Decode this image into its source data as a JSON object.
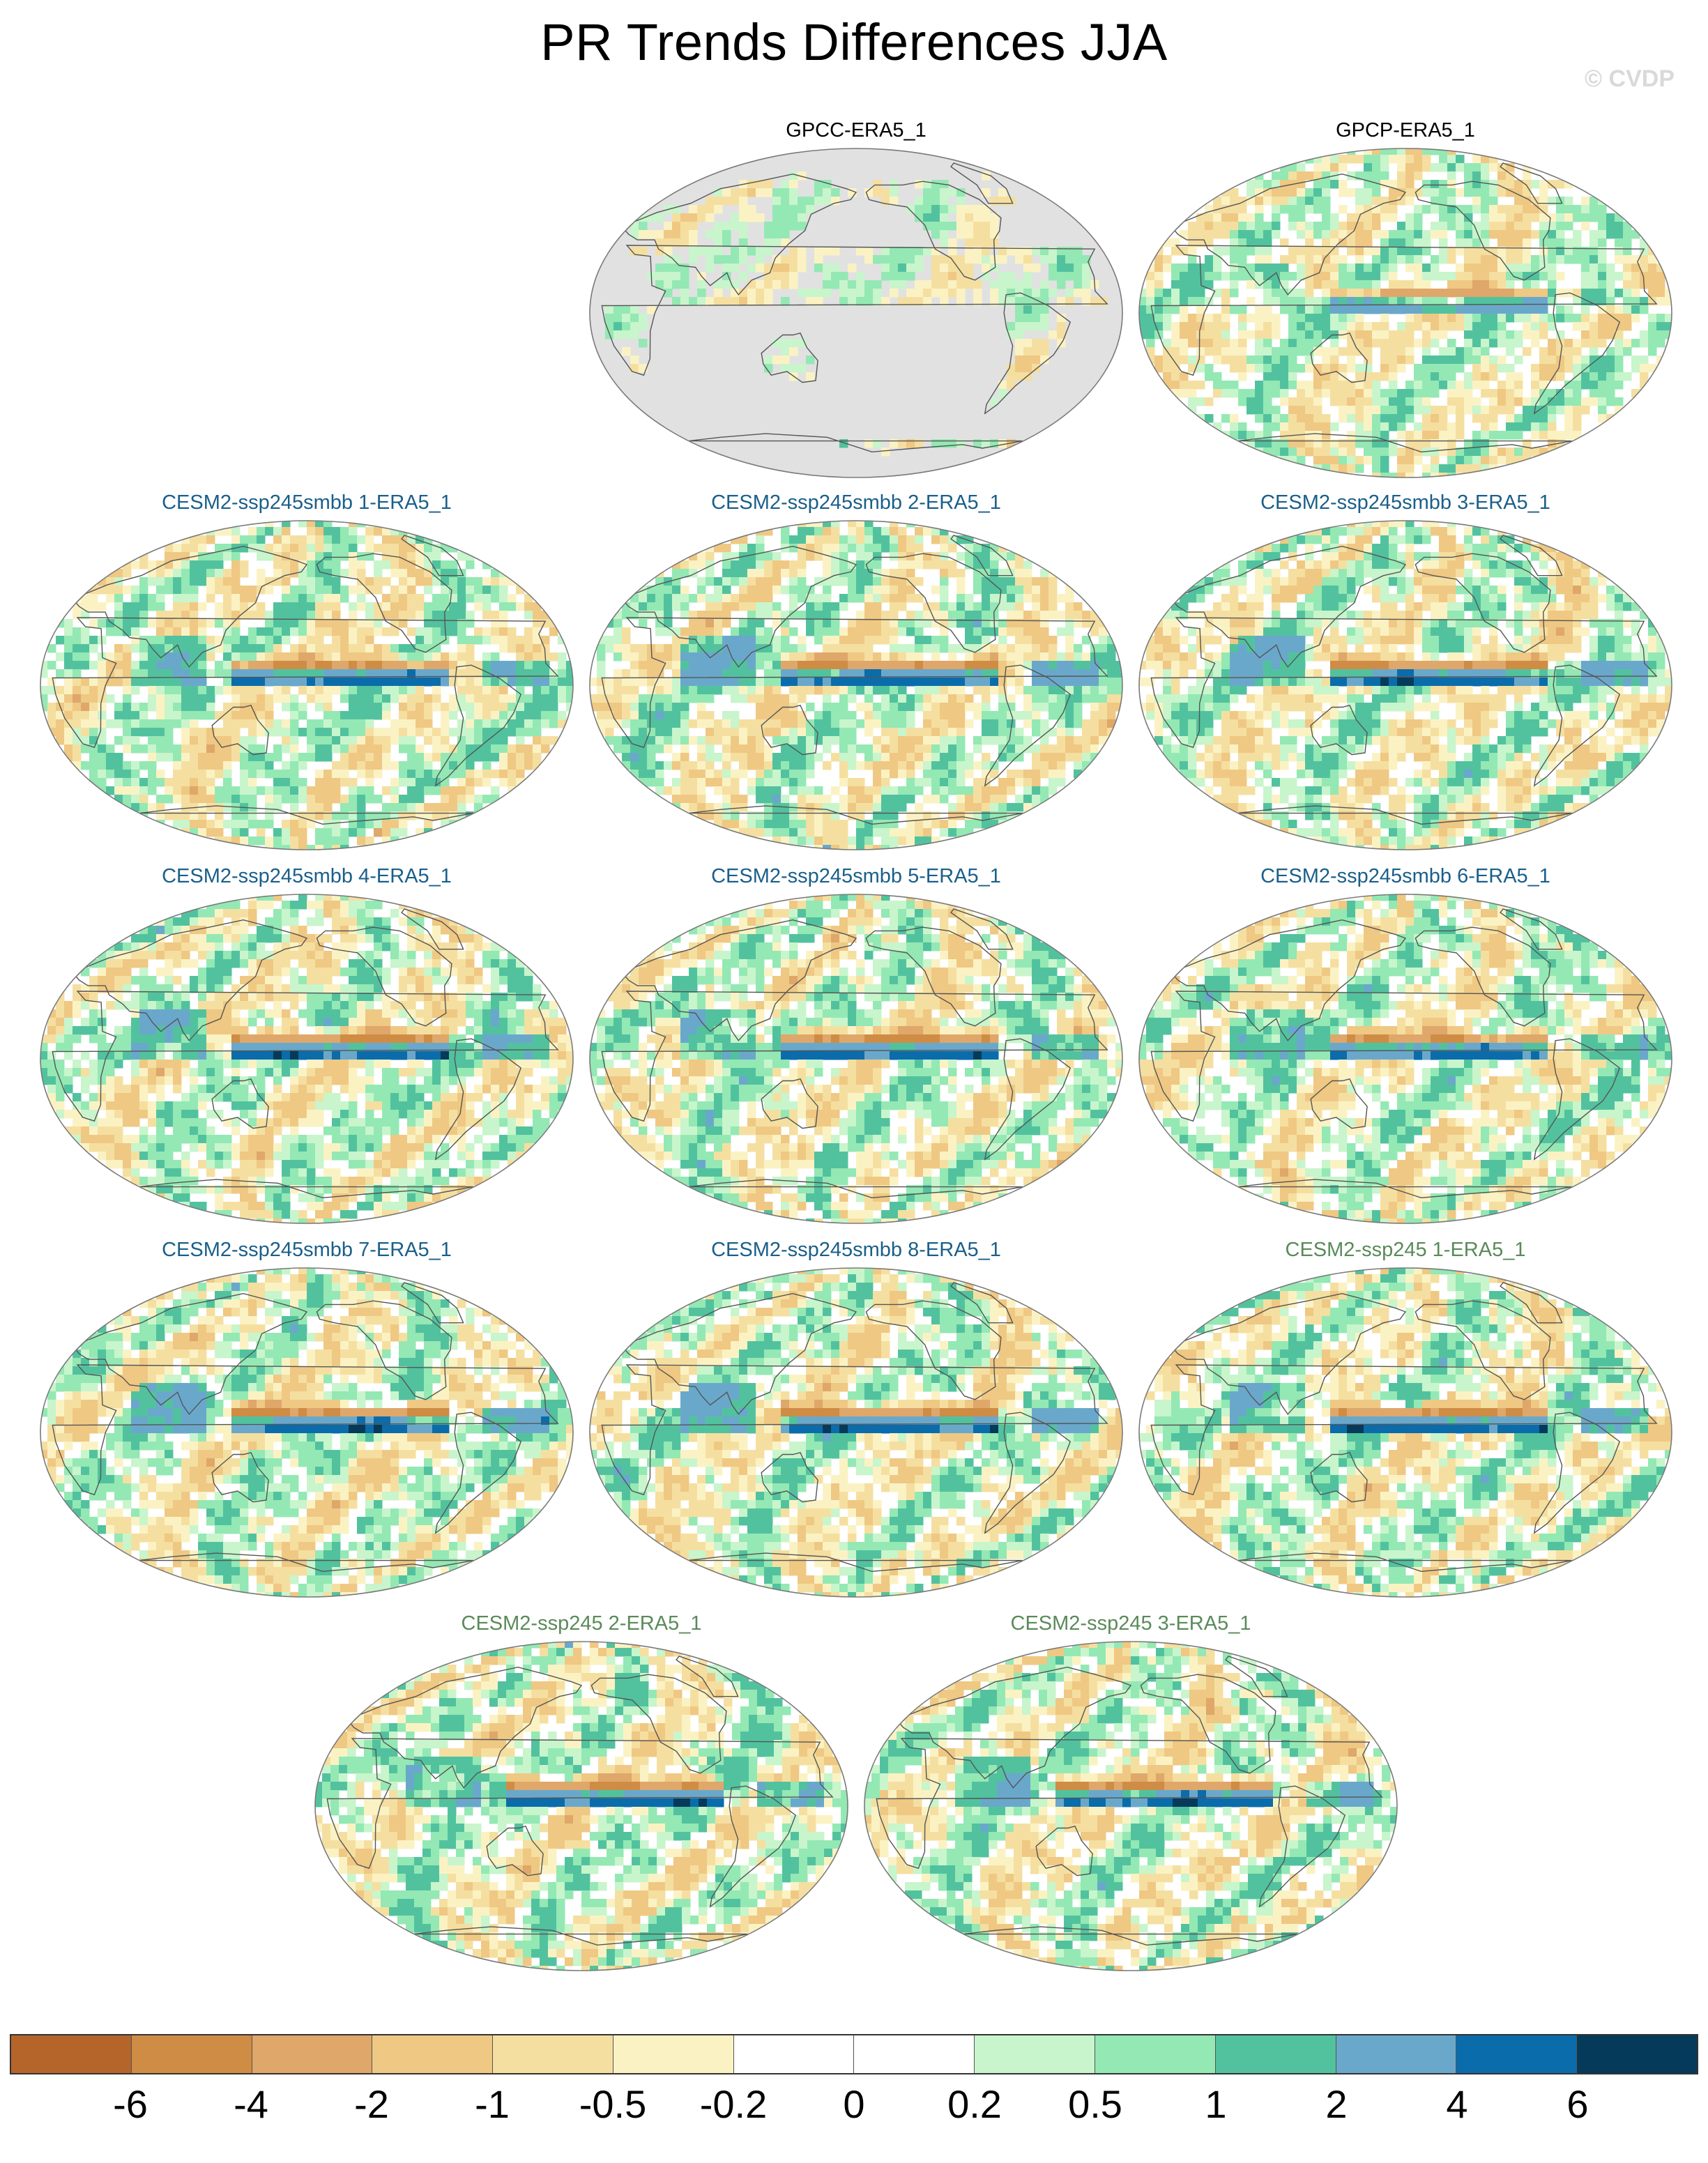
{
  "title": "PR Trends Differences JJA",
  "watermark": "© CVDP",
  "panels": [
    {
      "title": "GPCC-ERA5_1",
      "title_color": "#000000",
      "land_only": true,
      "intensity": 0.45,
      "pacific_band": 0
    },
    {
      "title": "GPCP-ERA5_1",
      "title_color": "#000000",
      "land_only": false,
      "intensity": 0.7,
      "pacific_band": 0.5
    },
    {
      "title": "CESM2-ssp245smbb 1-ERA5_1",
      "title_color": "#1a5f8a",
      "land_only": false,
      "intensity": 0.75,
      "pacific_band": 0.9
    },
    {
      "title": "CESM2-ssp245smbb 2-ERA5_1",
      "title_color": "#1a5f8a",
      "land_only": false,
      "intensity": 0.75,
      "pacific_band": 1.0
    },
    {
      "title": "CESM2-ssp245smbb 3-ERA5_1",
      "title_color": "#1a5f8a",
      "land_only": false,
      "intensity": 0.75,
      "pacific_band": 1.0
    },
    {
      "title": "CESM2-ssp245smbb 4-ERA5_1",
      "title_color": "#1a5f8a",
      "land_only": false,
      "intensity": 0.75,
      "pacific_band": 1.0
    },
    {
      "title": "CESM2-ssp245smbb 5-ERA5_1",
      "title_color": "#1a5f8a",
      "land_only": false,
      "intensity": 0.75,
      "pacific_band": 1.0
    },
    {
      "title": "CESM2-ssp245smbb 6-ERA5_1",
      "title_color": "#1a5f8a",
      "land_only": false,
      "intensity": 0.75,
      "pacific_band": 0.9
    },
    {
      "title": "CESM2-ssp245smbb 7-ERA5_1",
      "title_color": "#1a5f8a",
      "land_only": false,
      "intensity": 0.75,
      "pacific_band": 1.0
    },
    {
      "title": "CESM2-ssp245smbb 8-ERA5_1",
      "title_color": "#1a5f8a",
      "land_only": false,
      "intensity": 0.75,
      "pacific_band": 1.0
    },
    {
      "title": "CESM2-ssp245 1-ERA5_1",
      "title_color": "#5a8a5a",
      "land_only": false,
      "intensity": 0.75,
      "pacific_band": 1.0
    },
    {
      "title": "CESM2-ssp245 2-ERA5_1",
      "title_color": "#5a8a5a",
      "land_only": false,
      "intensity": 0.75,
      "pacific_band": 1.0
    },
    {
      "title": "CESM2-ssp245 3-ERA5_1",
      "title_color": "#5a8a5a",
      "land_only": false,
      "intensity": 0.75,
      "pacific_band": 0.95
    }
  ],
  "colorbar": {
    "colors": [
      "#b5652a",
      "#cf8c45",
      "#dfa76a",
      "#efc883",
      "#f5dfa0",
      "#fbf2c4",
      "#ffffff",
      "#ffffff",
      "#c8f5cc",
      "#94e8b4",
      "#52c29e",
      "#6aa8cb",
      "#0a6cab",
      "#053a5a"
    ],
    "labels": [
      "-6",
      "-4",
      "-2",
      "-1",
      "-0.5",
      "-0.2",
      "0",
      "0.2",
      "0.5",
      "1",
      "2",
      "4",
      "6"
    ]
  },
  "missing_color": "#e1e1e1",
  "coastline_color": "#555555"
}
